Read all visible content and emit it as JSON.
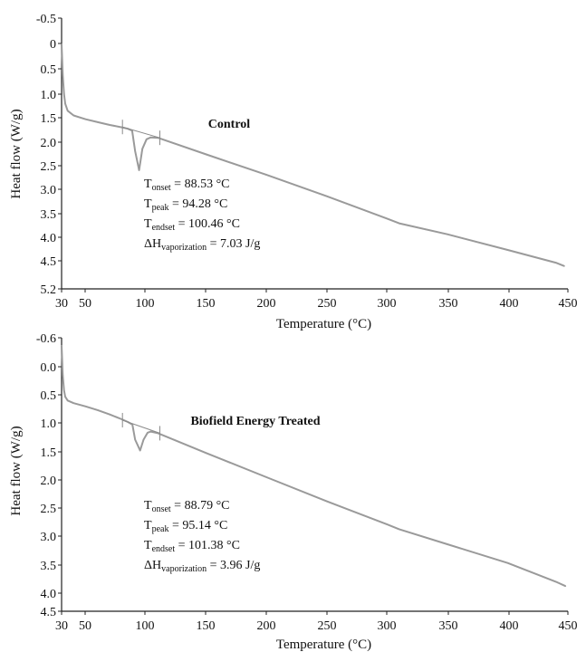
{
  "chart_data": [
    {
      "type": "line",
      "title": "Control",
      "xlabel": "Temperature (°C)",
      "ylabel": "Heat flow (W/g)",
      "xlim": [
        30,
        450
      ],
      "ylim": [
        -0.5,
        5.2
      ],
      "y_inverted": true,
      "x_ticks": [
        "30",
        "50",
        "100",
        "150",
        "200",
        "250",
        "300",
        "350",
        "400",
        "450"
      ],
      "y_ticks": [
        "-0.5",
        "0",
        "0.5",
        "1.0",
        "1.5",
        "2.0",
        "2.5",
        "3.0",
        "3.5",
        "4.0",
        "4.5",
        "5.2"
      ],
      "series": [
        {
          "x": [
            30,
            31,
            32,
            33,
            35,
            40,
            50,
            60,
            70,
            80,
            85,
            88.53,
            91,
            94.28,
            97,
            100.46,
            104,
            110,
            150,
            200,
            250,
            300,
            310,
            350,
            400,
            440,
            447
          ],
          "y": [
            0.05,
            0.7,
            1.1,
            1.3,
            1.45,
            1.55,
            1.63,
            1.69,
            1.75,
            1.8,
            1.83,
            1.87,
            2.3,
            2.7,
            2.25,
            2.05,
            2.01,
            2.02,
            2.37,
            2.8,
            3.25,
            3.72,
            3.82,
            4.05,
            4.38,
            4.65,
            4.72
          ]
        }
      ],
      "annotations": [
        {
          "main": "T",
          "sub": "onset",
          "rest": " = 88.53 °C"
        },
        {
          "main": "T",
          "sub": "peak",
          "rest": " = 94.28 °C"
        },
        {
          "main": "T",
          "sub": "endset",
          "rest": " = 100.46 °C"
        },
        {
          "main": "ΔH",
          "sub": "vaporization",
          "rest": " = 7.03 J/g"
        }
      ]
    },
    {
      "type": "line",
      "title": "Biofield Energy Treated",
      "xlabel": "Temperature (°C)",
      "ylabel": "Heat flow (W/g)",
      "xlim": [
        30,
        450
      ],
      "ylim": [
        -0.6,
        4.5
      ],
      "y_inverted": true,
      "x_ticks": [
        "30",
        "50",
        "100",
        "150",
        "200",
        "250",
        "300",
        "350",
        "400",
        "450"
      ],
      "y_ticks": [
        "-0.6",
        "0.0",
        "0.5",
        "1.0",
        "1.5",
        "2.0",
        "2.5",
        "3.0",
        "3.5",
        "4.0",
        "4.5"
      ],
      "series": [
        {
          "x": [
            30,
            31,
            32,
            33,
            35,
            40,
            50,
            60,
            70,
            80,
            85,
            88.79,
            91,
            95.14,
            98,
            101.38,
            104,
            110,
            150,
            200,
            250,
            300,
            310,
            350,
            400,
            440,
            448
          ],
          "y": [
            -0.45,
            0.1,
            0.38,
            0.5,
            0.57,
            0.62,
            0.68,
            0.75,
            0.83,
            0.92,
            0.97,
            1.02,
            1.3,
            1.5,
            1.3,
            1.17,
            1.15,
            1.18,
            1.55,
            2.0,
            2.45,
            2.88,
            2.97,
            3.25,
            3.6,
            3.95,
            4.03
          ]
        }
      ],
      "annotations": [
        {
          "main": "T",
          "sub": "onset",
          "rest": " = 88.79 °C"
        },
        {
          "main": "T",
          "sub": "peak",
          "rest": " = 95.14 °C"
        },
        {
          "main": "T",
          "sub": "endset",
          "rest": " = 101.38 °C"
        },
        {
          "main": "ΔH",
          "sub": "vaporization",
          "rest": " = 3.96 J/g"
        }
      ]
    }
  ]
}
